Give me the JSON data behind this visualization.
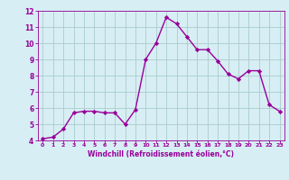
{
  "x": [
    0,
    1,
    2,
    3,
    4,
    5,
    6,
    7,
    8,
    9,
    10,
    11,
    12,
    13,
    14,
    15,
    16,
    17,
    18,
    19,
    20,
    21,
    22,
    23
  ],
  "y": [
    4.1,
    4.2,
    4.7,
    5.7,
    5.8,
    5.8,
    5.7,
    5.7,
    5.0,
    5.9,
    9.0,
    10.0,
    11.6,
    11.2,
    10.4,
    9.6,
    9.6,
    8.9,
    8.1,
    7.8,
    8.3,
    8.3,
    6.2,
    5.8
  ],
  "line_color": "#990099",
  "marker_color": "#990099",
  "bg_color": "#d7eef4",
  "grid_color": "#aacccc",
  "xlabel": "Windchill (Refroidissement éolien,°C)",
  "xlabel_color": "#990099",
  "tick_color": "#990099",
  "spine_color": "#990099",
  "ylim": [
    4,
    12
  ],
  "xlim": [
    -0.5,
    23.5
  ],
  "yticks": [
    4,
    5,
    6,
    7,
    8,
    9,
    10,
    11,
    12
  ],
  "xticks": [
    0,
    1,
    2,
    3,
    4,
    5,
    6,
    7,
    8,
    9,
    10,
    11,
    12,
    13,
    14,
    15,
    16,
    17,
    18,
    19,
    20,
    21,
    22,
    23
  ]
}
